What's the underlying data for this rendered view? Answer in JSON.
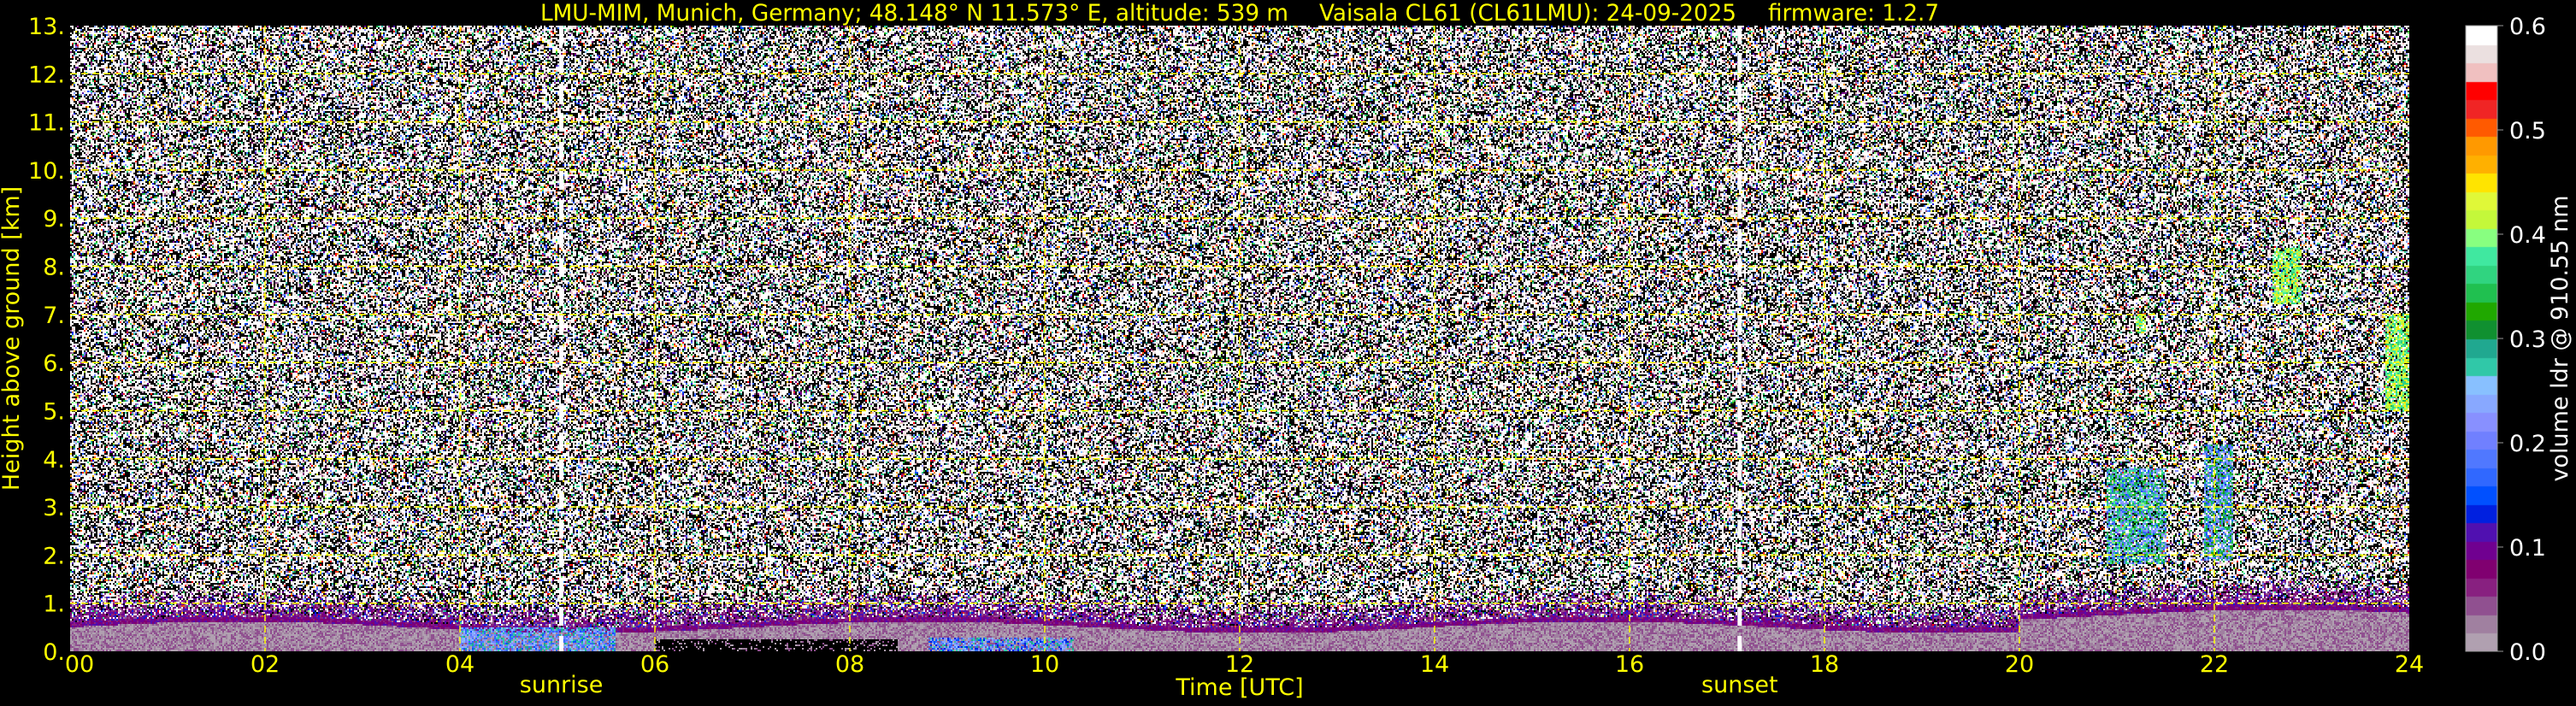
{
  "chart_data": {
    "type": "heatmap",
    "title_parts": [
      "LMU-MIM, Munich, Germany; 48.148° N 11.573° E, altitude: 539 m",
      "Vaisala CL61 (CL61LMU): 24-09-2025",
      "firmware: 1.2.7"
    ],
    "xlabel": "Time [UTC]",
    "ylabel": "Height above ground [km]",
    "xlim": [
      0,
      24
    ],
    "ylim": [
      0,
      13
    ],
    "x_ticks": [
      "00",
      "02",
      "04",
      "06",
      "08",
      "10",
      "12",
      "14",
      "16",
      "18",
      "20",
      "22",
      "24"
    ],
    "y_ticks": [
      "0.",
      "1.",
      "2.",
      "3.",
      "4.",
      "5.",
      "6.",
      "7.",
      "8.",
      "9.",
      "10.",
      "11.",
      "12.",
      "13."
    ],
    "grid": true,
    "grid_color": "#ffff00",
    "text_color": "#ffff00",
    "annotations": [
      {
        "label": "sunrise",
        "time": 5.04
      },
      {
        "label": "sunset",
        "time": 17.13
      }
    ],
    "colorbar": {
      "label": "volume ldr @ 910.55 nm",
      "range": [
        0.0,
        0.6
      ],
      "ticks": [
        "0.0",
        "0.1",
        "0.2",
        "0.3",
        "0.4",
        "0.5",
        "0.6"
      ],
      "colors": [
        "#b0a0b0",
        "#a080a0",
        "#905090",
        "#882080",
        "#800070",
        "#700090",
        "#5010b0",
        "#0020e0",
        "#0050ff",
        "#3068ff",
        "#5078ff",
        "#7080ff",
        "#8890ff",
        "#88a8ff",
        "#88c0ff",
        "#30c8a8",
        "#20a890",
        "#109030",
        "#20a800",
        "#20c050",
        "#30d480",
        "#40e8a0",
        "#88ff80",
        "#c4f83a",
        "#e0f838",
        "#ffe400",
        "#ffb000",
        "#ff9900",
        "#ff5a00",
        "#f02525",
        "#ff0000",
        "#f0c0c0",
        "#ebe0e0",
        "#ffffff"
      ]
    },
    "features": [
      {
        "kind": "boundary layer",
        "time": [
          0,
          24
        ],
        "height_km": [
          0,
          0.7
        ],
        "ldr": [
          0.0,
          0.06
        ]
      },
      {
        "kind": "surface aerosol",
        "time": [
          4.0,
          5.6
        ],
        "height_km": [
          0,
          0.5
        ],
        "ldr": [
          0.15,
          0.3
        ]
      },
      {
        "kind": "surface aerosol",
        "time": [
          8.8,
          10.3
        ],
        "height_km": [
          0,
          0.3
        ],
        "ldr": [
          0.12,
          0.3
        ]
      },
      {
        "kind": "cloud",
        "time": [
          20.9,
          21.5
        ],
        "height_km": [
          1.8,
          3.8
        ],
        "ldr": [
          0.15,
          0.4
        ]
      },
      {
        "kind": "cloud",
        "time": [
          21.9,
          22.2
        ],
        "height_km": [
          1.9,
          4.3
        ],
        "ldr": [
          0.15,
          0.35
        ]
      },
      {
        "kind": "cloud",
        "time": [
          21.2,
          21.3
        ],
        "height_km": [
          6.6,
          7.0
        ],
        "ldr": [
          0.35,
          0.45
        ]
      },
      {
        "kind": "cloud",
        "time": [
          22.6,
          22.9
        ],
        "height_km": [
          7.2,
          8.4
        ],
        "ldr": [
          0.35,
          0.45
        ]
      },
      {
        "kind": "cloud",
        "time": [
          23.75,
          24
        ],
        "height_km": [
          5.0,
          7.0
        ],
        "ldr": [
          0.35,
          0.45
        ]
      }
    ]
  }
}
